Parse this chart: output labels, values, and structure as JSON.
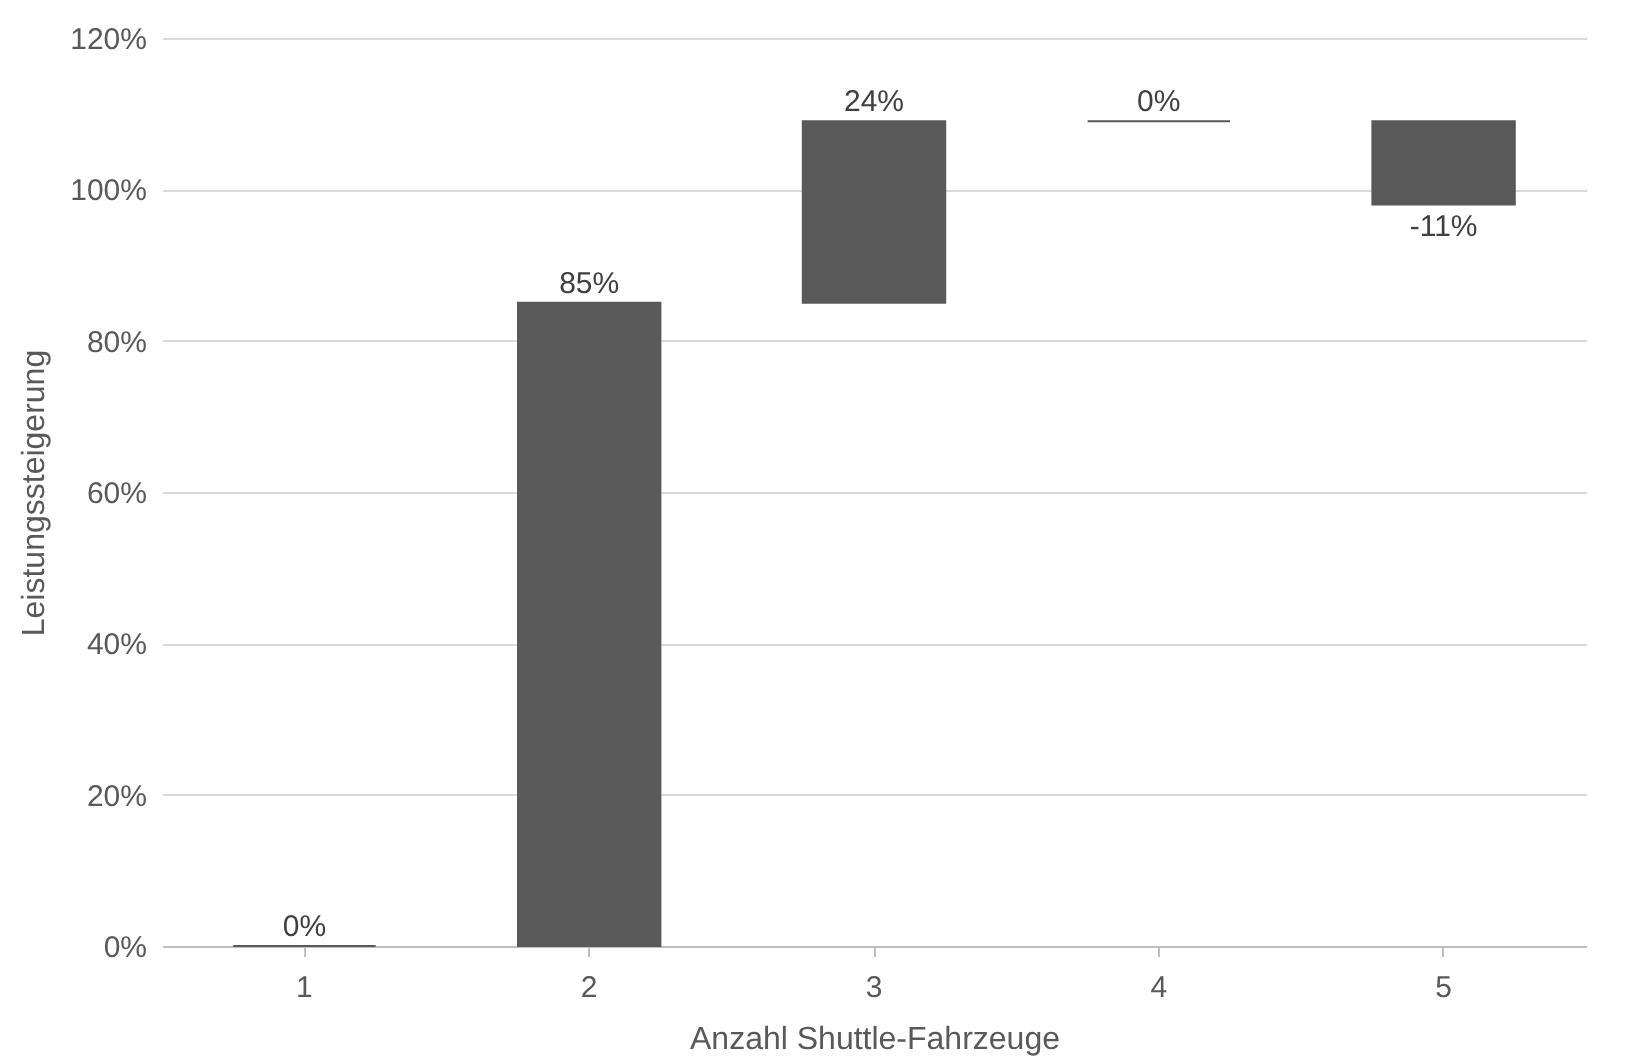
{
  "chart_data": {
    "type": "bar",
    "xlabel": "Anzahl Shuttle-Fahrzeuge",
    "ylabel": "Leistungssteigerung",
    "categories": [
      "1",
      "2",
      "3",
      "4",
      "5"
    ],
    "values": [
      0,
      85,
      24,
      0,
      -11
    ],
    "base": [
      0,
      0,
      85,
      109,
      109
    ],
    "value_labels": [
      "0%",
      "85%",
      "24%",
      "0%",
      "-11%"
    ],
    "color": "#595959",
    "ylim": [
      0,
      120
    ],
    "yticks": [
      {
        "value": 0,
        "label": "0%"
      },
      {
        "value": 20,
        "label": "20%"
      },
      {
        "value": 40,
        "label": "40%"
      },
      {
        "value": 60,
        "label": "60%"
      },
      {
        "value": 80,
        "label": "80%"
      },
      {
        "value": 100,
        "label": "100%"
      },
      {
        "value": 120,
        "label": "120%"
      }
    ],
    "grid": "y"
  }
}
